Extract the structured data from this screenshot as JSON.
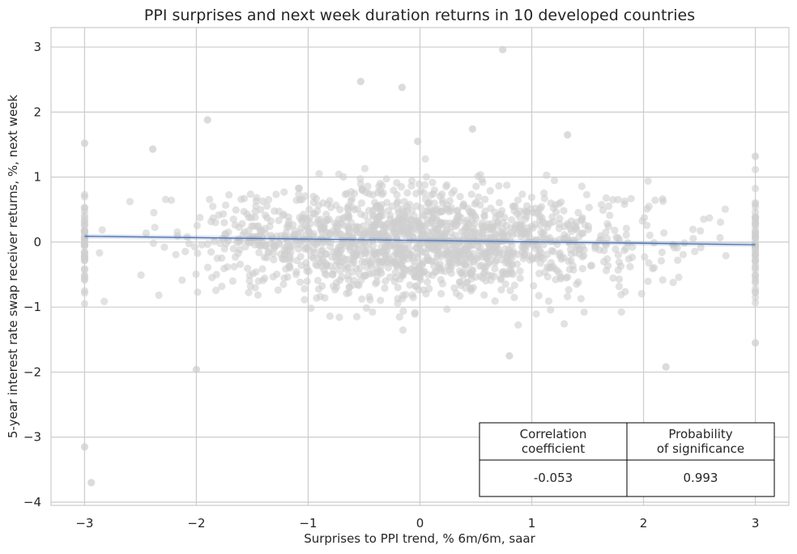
{
  "chart_data": {
    "type": "scatter",
    "title": "PPI surprises and next week duration returns in 10 developed countries",
    "xlabel": "Surprises to PPI trend, % 6m/6m, saar",
    "ylabel": "5-year interest rate swap receiver returns, %, next week",
    "xlim": [
      -3.3,
      3.3
    ],
    "ylim": [
      -4.05,
      3.3
    ],
    "xticks": [
      -3,
      -2,
      -1,
      0,
      1,
      2,
      3
    ],
    "xtick_labels": [
      "−3",
      "−2",
      "−1",
      "0",
      "1",
      "2",
      "3"
    ],
    "yticks": [
      3,
      2,
      1,
      0,
      -1,
      -2,
      -3,
      -4
    ],
    "ytick_labels": [
      "3",
      "2",
      "1",
      "0",
      "−1",
      "−2",
      "−3",
      "−4"
    ],
    "grid": true,
    "point_color": "#cfcfcf",
    "regression_color": "#4c72b0",
    "regression": {
      "x": [
        -3,
        3
      ],
      "y": [
        0.09,
        -0.04
      ]
    },
    "highlight_points": {
      "x": [
        0.74,
        -0.53,
        -0.16,
        -1.9,
        -2.39,
        -3.0,
        -2.94,
        -0.02,
        0.47,
        1.32,
        -3.0,
        -2.0,
        0.8,
        2.2,
        3.0,
        3.0
      ],
      "y": [
        2.96,
        2.47,
        2.38,
        1.88,
        1.43,
        -3.15,
        -3.7,
        1.55,
        1.74,
        1.65,
        1.52,
        -1.96,
        -1.75,
        -1.92,
        1.32,
        -1.55
      ]
    },
    "cloud": {
      "n": 1600,
      "x_sd": 1.0,
      "y_sd": 0.42,
      "seed": 7
    },
    "stats_table": {
      "headers": [
        "Correlation\ncoefficient",
        "Probability\nof significance"
      ],
      "values": [
        "-0.053",
        "0.993"
      ]
    }
  }
}
